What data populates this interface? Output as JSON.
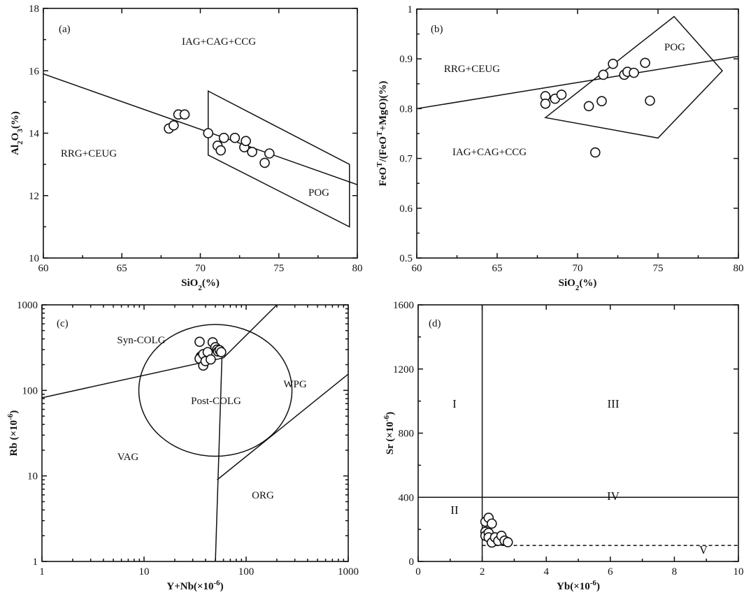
{
  "chart_data": [
    {
      "id": "a",
      "type": "scatter",
      "panel_label": "(a)",
      "xlabel": "SiO2(%)",
      "ylabel": "Al2O3(%)",
      "xlim": [
        60,
        80
      ],
      "ylim": [
        10,
        18
      ],
      "xscale": "linear",
      "yscale": "linear",
      "xticks": [
        60,
        65,
        70,
        75,
        80
      ],
      "yticks": [
        10,
        12,
        14,
        16,
        18
      ],
      "regions": [
        "IAG+CAG+CCG",
        "RRG+CEUG",
        "POG"
      ],
      "points": [
        [
          68.0,
          14.15
        ],
        [
          68.3,
          14.25
        ],
        [
          68.6,
          14.6
        ],
        [
          69.0,
          14.6
        ],
        [
          70.5,
          14.0
        ],
        [
          71.1,
          13.6
        ],
        [
          71.3,
          13.45
        ],
        [
          71.5,
          13.85
        ],
        [
          72.2,
          13.85
        ],
        [
          72.8,
          13.55
        ],
        [
          72.9,
          13.75
        ],
        [
          73.3,
          13.4
        ],
        [
          74.1,
          13.05
        ],
        [
          74.4,
          13.35
        ]
      ],
      "lines": [
        [
          [
            60,
            15.9
          ],
          [
            80,
            12.35
          ]
        ]
      ],
      "polygons": [
        [
          [
            70.5,
            15.35
          ],
          [
            79.5,
            13.0
          ],
          [
            79.5,
            11.0
          ],
          [
            70.5,
            13.3
          ]
        ]
      ]
    },
    {
      "id": "b",
      "type": "scatter",
      "panel_label": "(b)",
      "xlabel": "SiO2(%)",
      "ylabel": "FeOT/(FeOT+MgO)(%)",
      "xlim": [
        60,
        80
      ],
      "ylim": [
        0.5,
        1.0
      ],
      "xscale": "linear",
      "yscale": "linear",
      "xticks": [
        60,
        65,
        70,
        75,
        80
      ],
      "yticks": [
        0.5,
        0.6,
        0.7,
        0.8,
        0.9,
        1.0
      ],
      "regions": [
        "RRG+CEUG",
        "POG",
        "IAG+CAG+CCG"
      ],
      "points": [
        [
          68.0,
          0.825
        ],
        [
          68.0,
          0.81
        ],
        [
          68.6,
          0.82
        ],
        [
          69.0,
          0.828
        ],
        [
          70.7,
          0.805
        ],
        [
          71.1,
          0.712
        ],
        [
          71.5,
          0.815
        ],
        [
          71.6,
          0.868
        ],
        [
          72.2,
          0.89
        ],
        [
          72.9,
          0.868
        ],
        [
          73.1,
          0.874
        ],
        [
          73.5,
          0.872
        ],
        [
          74.2,
          0.892
        ],
        [
          74.5,
          0.816
        ]
      ],
      "lines": [
        [
          [
            60,
            0.8
          ],
          [
            80,
            0.905
          ]
        ]
      ],
      "polygons": [
        [
          [
            68.0,
            0.782
          ],
          [
            76.0,
            0.985
          ],
          [
            79.0,
            0.876
          ],
          [
            75.0,
            0.741
          ]
        ]
      ]
    },
    {
      "id": "c",
      "type": "scatter",
      "panel_label": "(c)",
      "xlabel": "Y+Nb(×10-6)",
      "ylabel": "Rb (×10-6)",
      "xlim": [
        1,
        1000
      ],
      "ylim": [
        1,
        1000
      ],
      "xscale": "log",
      "yscale": "log",
      "xticks": [
        1,
        10,
        100,
        1000
      ],
      "yticks": [
        1,
        10,
        100,
        1000
      ],
      "regions": [
        "Syn-COLG",
        "Post-COLG",
        "WPG",
        "VAG",
        "ORG"
      ],
      "points": [
        [
          35,
          370
        ],
        [
          36,
          250
        ],
        [
          35,
          235
        ],
        [
          38,
          265
        ],
        [
          38,
          195
        ],
        [
          40,
          220
        ],
        [
          42,
          280
        ],
        [
          45,
          230
        ],
        [
          47,
          365
        ],
        [
          50,
          320
        ],
        [
          52,
          300
        ],
        [
          53,
          285
        ],
        [
          55,
          295
        ],
        [
          57,
          280
        ]
      ],
      "lines": [
        [
          [
            1,
            82
          ],
          [
            60,
            240
          ]
        ],
        [
          [
            60,
            240
          ],
          [
            200,
            1000
          ]
        ],
        [
          [
            58,
            250
          ],
          [
            50,
            1
          ]
        ],
        [
          [
            52,
            9
          ],
          [
            1000,
            155
          ]
        ]
      ],
      "ellipse": {
        "center": [
          50,
          100
        ],
        "rx_decades": 0.75,
        "ry_decades": 0.77
      }
    },
    {
      "id": "d",
      "type": "scatter",
      "panel_label": "(d)",
      "xlabel": "Yb(×10-6)",
      "ylabel": "Sr (×10-6)",
      "xlim": [
        0,
        10
      ],
      "ylim": [
        0,
        1600
      ],
      "xscale": "linear",
      "yscale": "linear",
      "xticks": [
        0,
        2,
        4,
        6,
        8,
        10
      ],
      "yticks": [
        0,
        400,
        800,
        1200,
        1600
      ],
      "regions": [
        "I",
        "III",
        "II",
        "IV",
        "V"
      ],
      "points": [
        [
          2.1,
          248
        ],
        [
          2.2,
          272
        ],
        [
          2.3,
          236
        ],
        [
          2.1,
          185
        ],
        [
          2.1,
          160
        ],
        [
          2.2,
          178
        ],
        [
          2.2,
          150
        ],
        [
          2.3,
          118
        ],
        [
          2.4,
          150
        ],
        [
          2.5,
          128
        ],
        [
          2.6,
          160
        ],
        [
          2.7,
          130
        ],
        [
          2.8,
          120
        ]
      ],
      "lines": [
        [
          [
            2,
            0
          ],
          [
            2,
            1600
          ]
        ],
        [
          [
            0,
            400
          ],
          [
            10,
            400
          ]
        ]
      ],
      "dashed": [
        [
          [
            2,
            100
          ],
          [
            10,
            100
          ]
        ]
      ]
    }
  ]
}
